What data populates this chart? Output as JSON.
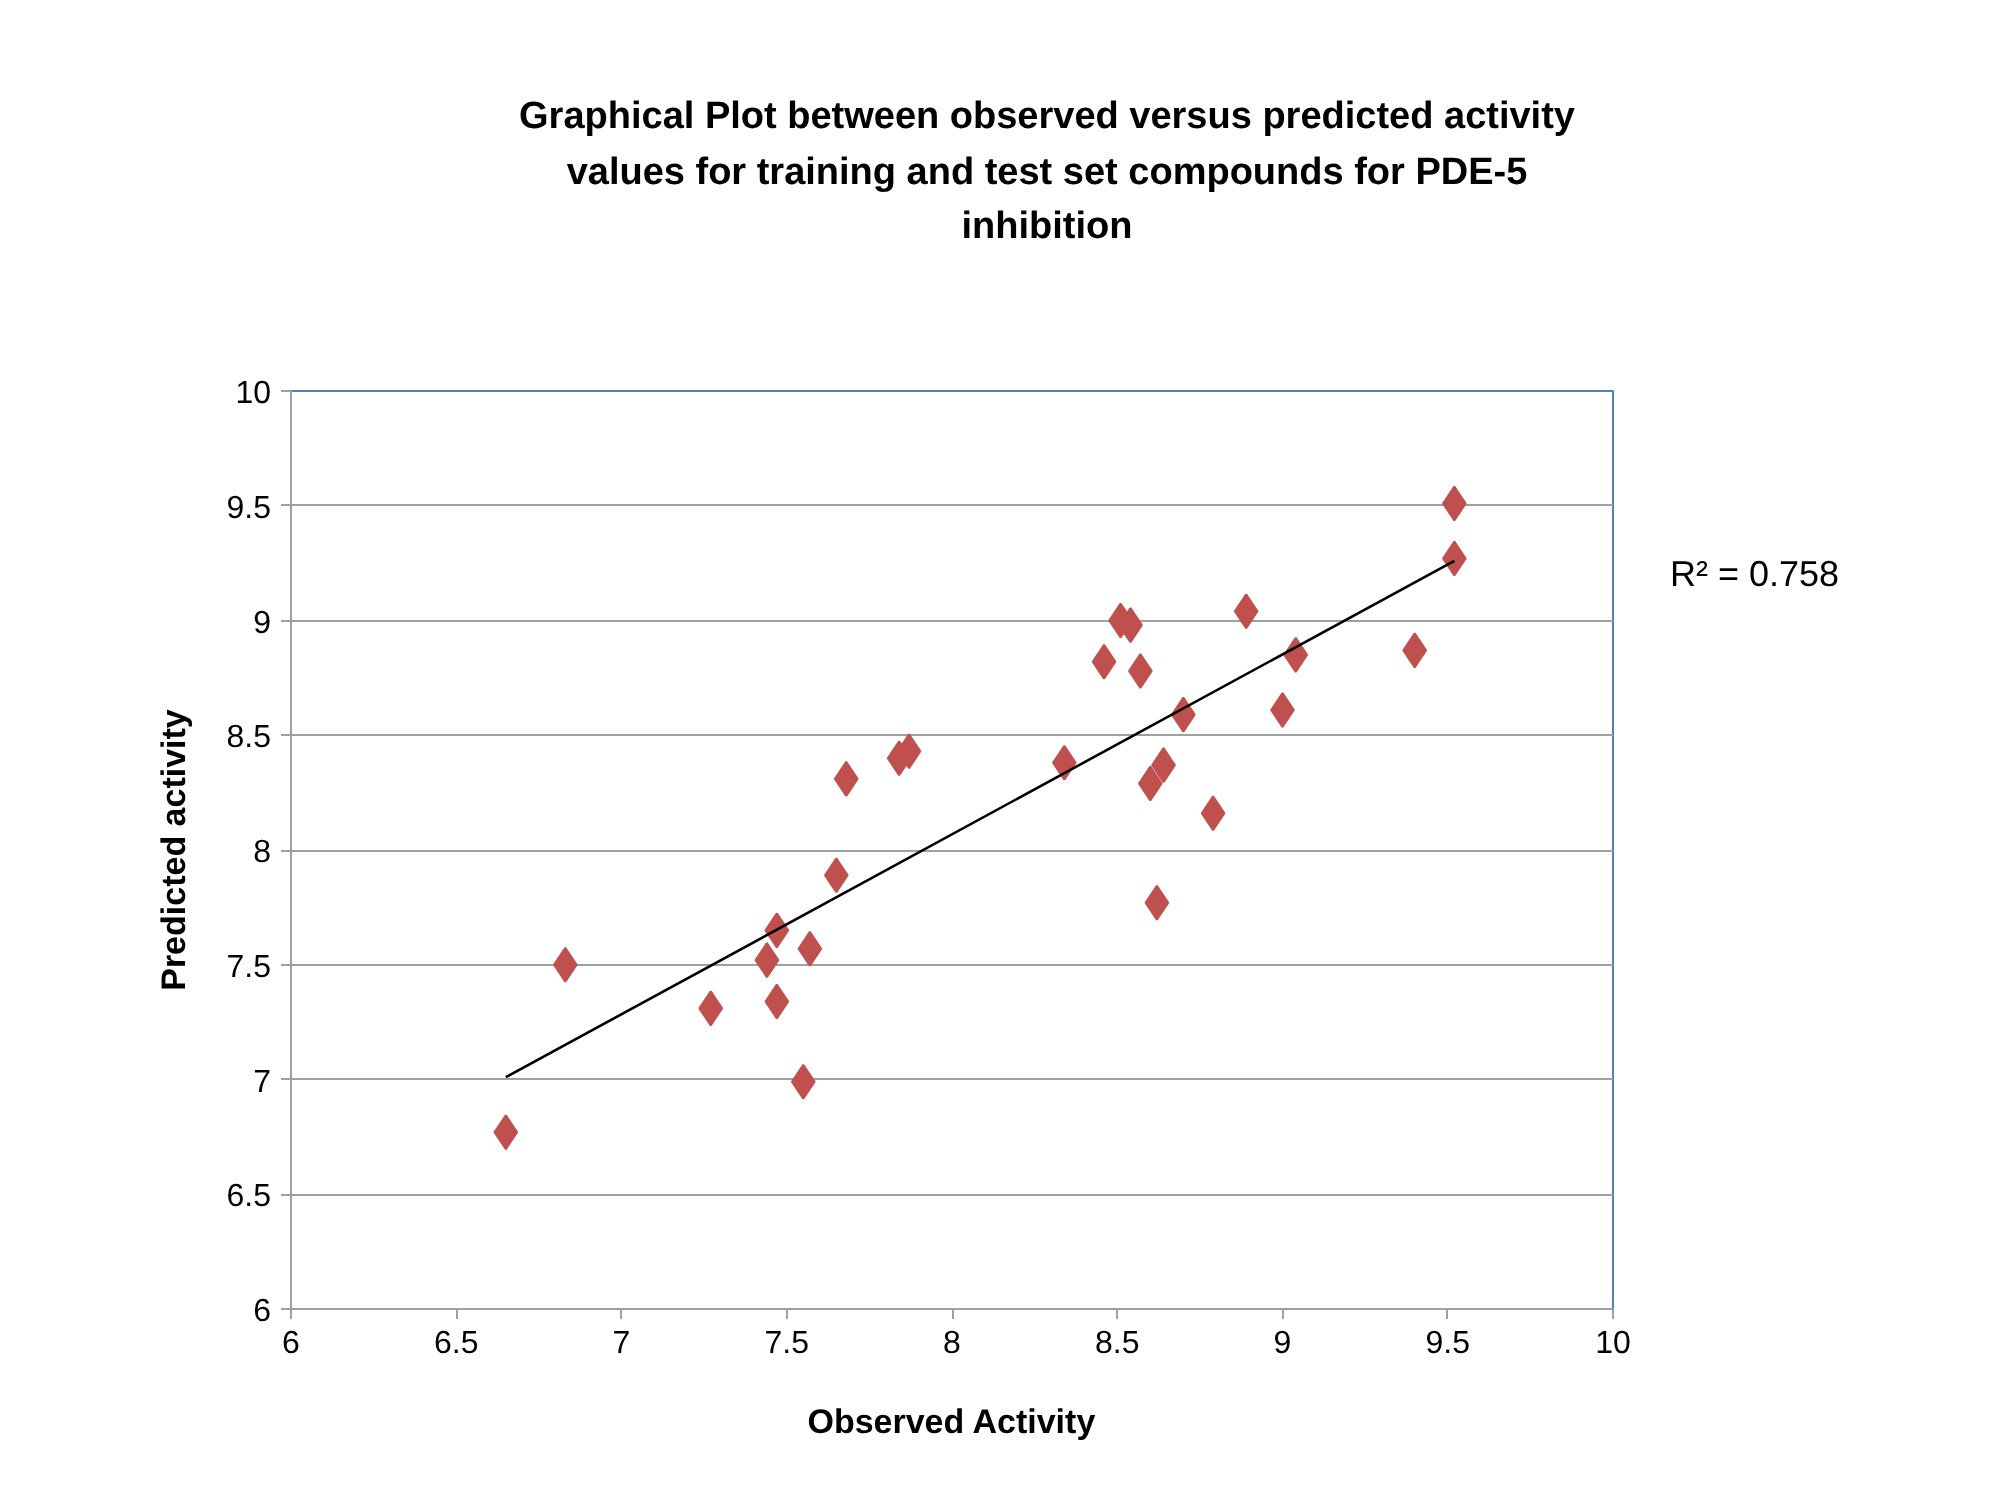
{
  "chart_data": {
    "type": "scatter",
    "title": "Graphical Plot between observed versus predicted activity values for training and test set compounds for PDE-5 inhibition",
    "xlabel": "Observed Activity",
    "ylabel": "Predicted activity",
    "xlim": [
      6,
      10
    ],
    "ylim": [
      6,
      10
    ],
    "xticks": [
      6,
      6.5,
      7,
      7.5,
      8,
      8.5,
      9,
      9.5,
      10
    ],
    "yticks": [
      6,
      6.5,
      7,
      7.5,
      8,
      8.5,
      9,
      9.5,
      10
    ],
    "grid": "y",
    "annotations": [
      "R² = 0.758"
    ],
    "series": [
      {
        "marker": "diamond",
        "color": "#c0504d",
        "x": [
          6.65,
          6.83,
          7.27,
          7.44,
          7.47,
          7.47,
          7.55,
          7.57,
          7.65,
          7.68,
          7.84,
          7.87,
          8.34,
          8.46,
          8.51,
          8.54,
          8.57,
          8.7,
          8.64,
          8.6,
          8.79,
          8.62,
          8.89,
          9.04,
          9.0,
          9.4,
          9.52,
          9.52
        ],
        "values": [
          6.77,
          7.5,
          7.31,
          7.52,
          7.65,
          7.34,
          6.99,
          7.57,
          7.89,
          8.31,
          8.4,
          8.43,
          8.38,
          8.82,
          9.0,
          8.98,
          8.78,
          8.59,
          8.37,
          8.29,
          8.16,
          7.77,
          9.04,
          8.85,
          8.61,
          8.87,
          9.51,
          9.27
        ]
      },
      {
        "type": "line",
        "color": "#000000",
        "x": [
          6.65,
          9.52
        ],
        "values": [
          7.01,
          9.26
        ]
      }
    ]
  }
}
